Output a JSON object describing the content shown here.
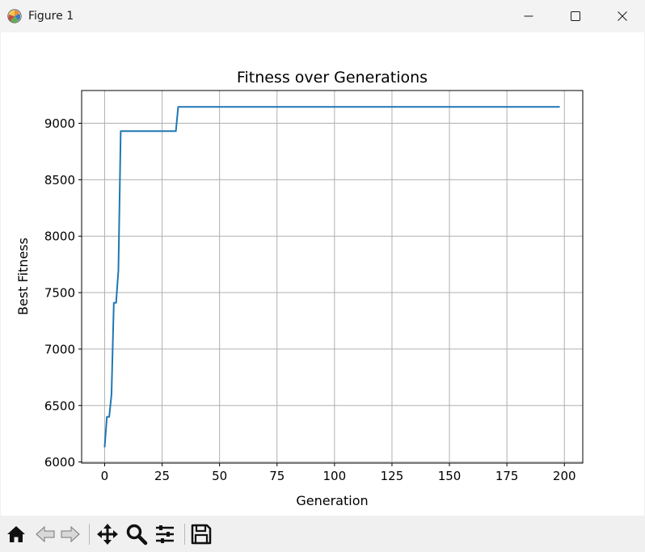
{
  "window": {
    "title": "Figure 1",
    "icons": [
      "matplotlib-icon",
      "minimize-icon",
      "maximize-icon",
      "close-icon"
    ]
  },
  "toolbar": {
    "buttons": [
      "home-icon",
      "back-icon",
      "forward-icon",
      "pan-icon",
      "zoom-icon",
      "configure-subplots-icon",
      "save-icon"
    ]
  },
  "colors": {
    "line": "#1f77b4",
    "grid": "#b0b0b0",
    "background": "#ffffff",
    "toolbar": "#f0f0f0"
  },
  "chart_data": {
    "type": "line",
    "title": "Fitness over Generations",
    "xlabel": "Generation",
    "ylabel": "Best Fitness",
    "xlim": [
      -10,
      208
    ],
    "ylim": [
      5990,
      9290
    ],
    "xticks": [
      0,
      25,
      50,
      75,
      100,
      125,
      150,
      175,
      200
    ],
    "yticks": [
      6000,
      6500,
      7000,
      7500,
      8000,
      8500,
      9000
    ],
    "xtick_labels": [
      "0",
      "25",
      "50",
      "75",
      "100",
      "125",
      "150",
      "175",
      "200"
    ],
    "ytick_labels": [
      "6000",
      "6500",
      "7000",
      "7500",
      "8000",
      "8500",
      "9000"
    ],
    "grid": true,
    "series": [
      {
        "points": [
          [
            0,
            6130
          ],
          [
            1,
            6400
          ],
          [
            2,
            6400
          ],
          [
            3,
            6600
          ],
          [
            4,
            7410
          ],
          [
            5,
            7410
          ],
          [
            6,
            7700
          ],
          [
            7,
            8930
          ],
          [
            30,
            8930
          ],
          [
            31,
            8930
          ],
          [
            32,
            9145
          ],
          [
            198,
            9145
          ]
        ]
      }
    ]
  }
}
